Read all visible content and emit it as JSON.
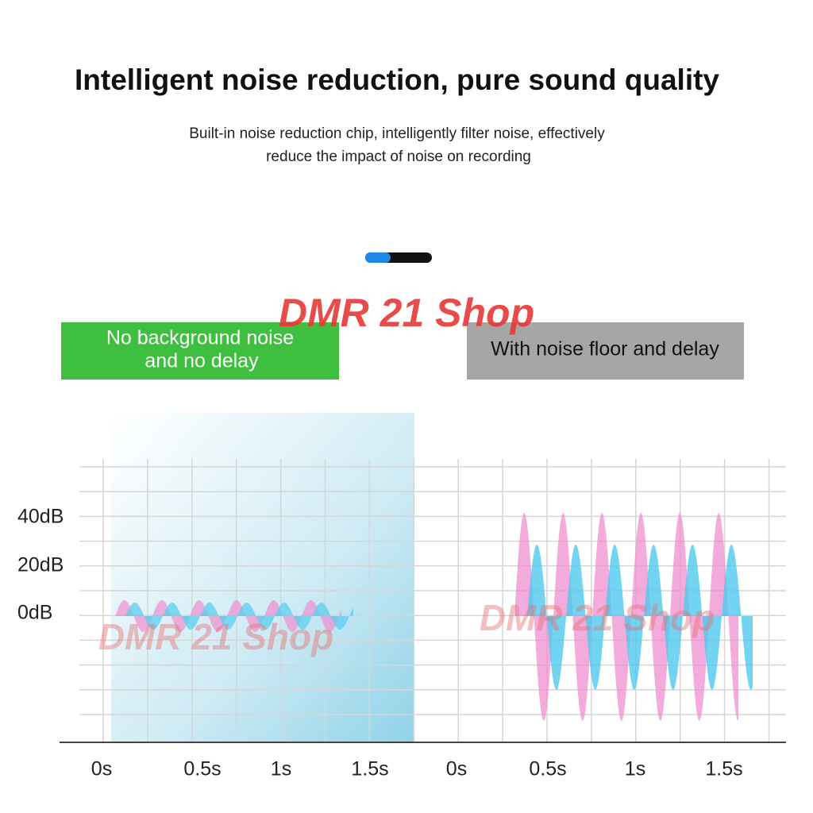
{
  "header": {
    "title": "Intelligent noise reduction, pure sound quality",
    "subtitle_lines": [
      "Built-in noise reduction chip, intelligently filter noise, effectively",
      "reduce the impact of noise on recording"
    ]
  },
  "watermark": "DMR 21 Shop",
  "panels": [
    {
      "label_lines": [
        "No background noise",
        "and no delay"
      ],
      "x_labels": [
        "0s",
        "0.5s",
        "1s",
        "1.5s"
      ]
    },
    {
      "label_lines": [
        "With noise floor and delay"
      ],
      "x_labels": [
        "0s",
        "0.5s",
        "1s",
        "1.5s"
      ]
    }
  ],
  "y_labels": [
    "40dB",
    "20dB",
    "0dB"
  ]
}
